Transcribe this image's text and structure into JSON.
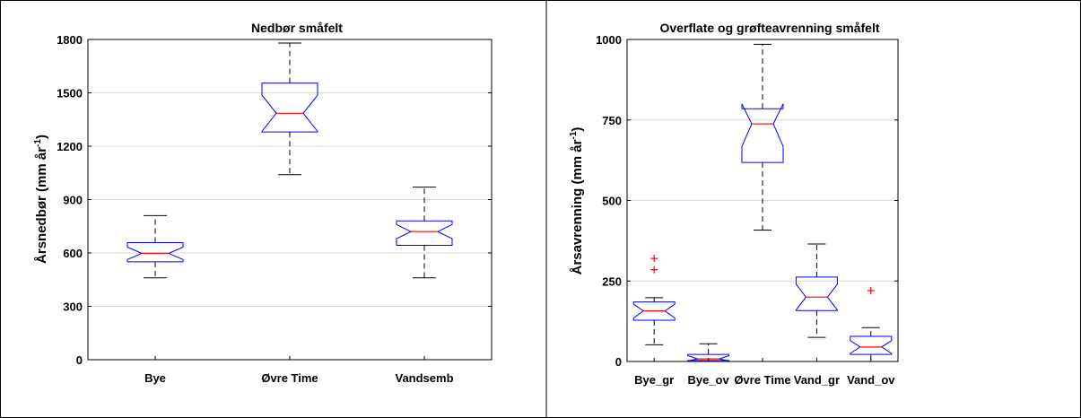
{
  "chart_data": [
    {
      "type": "boxplot",
      "title": "Nedbør småfelt",
      "ylabel": "Årsnedbør (mm år",
      "ylabel_sup": "-1",
      "ylabel_end": ")",
      "ylim": [
        0,
        1800
      ],
      "yticks": [
        0,
        300,
        600,
        900,
        1200,
        1500,
        1800
      ],
      "grid": "horizontal",
      "notched": true,
      "categories": [
        "Bye",
        "Øvre Time",
        "Vandsemb"
      ],
      "boxes": [
        {
          "name": "Bye",
          "whisker_low": 460,
          "q1": 550,
          "median": 598,
          "q3": 658,
          "whisker_high": 810,
          "notch_low": 563,
          "notch_high": 633,
          "outliers": []
        },
        {
          "name": "Øvre Time",
          "whisker_low": 1040,
          "q1": 1280,
          "median": 1385,
          "q3": 1555,
          "whisker_high": 1780,
          "notch_low": 1283,
          "notch_high": 1487,
          "outliers": []
        },
        {
          "name": "Vandsemb",
          "whisker_low": 460,
          "q1": 643,
          "median": 720,
          "q3": 780,
          "whisker_high": 970,
          "notch_low": 680,
          "notch_high": 760,
          "outliers": []
        }
      ],
      "colors": {
        "box": "#0000ff",
        "median": "#ff0000",
        "whisker": "#000000",
        "outlier": "#ff0000",
        "grid": "#d9d9d9"
      }
    },
    {
      "type": "boxplot",
      "title": "Overflate og grøfteavrenning småfelt",
      "ylabel": "Årsavrenning (mm år",
      "ylabel_sup": "-1",
      "ylabel_end": ")",
      "ylim": [
        0,
        1000
      ],
      "yticks": [
        0,
        250,
        500,
        750,
        1000
      ],
      "grid": "horizontal",
      "notched": true,
      "categories": [
        "Bye_gr",
        "Bye_ov",
        "Øvre Time",
        "Vand_gr",
        "Vand_ov"
      ],
      "boxes": [
        {
          "name": "Bye_gr",
          "whisker_low": 52,
          "q1": 128,
          "median": 157,
          "q3": 185,
          "whisker_high": 198,
          "notch_low": 135,
          "notch_high": 178,
          "outliers": [
            285,
            320
          ]
        },
        {
          "name": "Bye_ov",
          "whisker_low": 0,
          "q1": 3,
          "median": 8,
          "q3": 22,
          "whisker_high": 55,
          "notch_low": 2,
          "notch_high": 18,
          "outliers": []
        },
        {
          "name": "Øvre Time",
          "whisker_low": 408,
          "q1": 618,
          "median": 738,
          "q3": 785,
          "whisker_high": 985,
          "notch_low": 668,
          "notch_high": 800,
          "outliers": []
        },
        {
          "name": "Vand_gr",
          "whisker_low": 75,
          "q1": 158,
          "median": 200,
          "q3": 262,
          "whisker_high": 365,
          "notch_low": 160,
          "notch_high": 240,
          "outliers": []
        },
        {
          "name": "Vand_ov",
          "whisker_low": 0,
          "q1": 22,
          "median": 45,
          "q3": 78,
          "whisker_high": 105,
          "notch_low": 25,
          "notch_high": 65,
          "outliers": [
            220
          ]
        }
      ],
      "colors": {
        "box": "#0000ff",
        "median": "#ff0000",
        "whisker": "#000000",
        "outlier": "#ff0000",
        "grid": "#d9d9d9"
      }
    }
  ]
}
